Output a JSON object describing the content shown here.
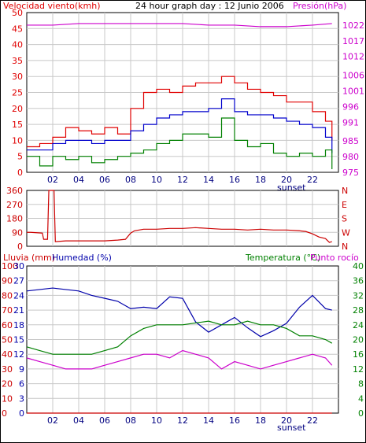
{
  "colors": {
    "wind": "#e00000",
    "wind_avg": "#0000cc",
    "wind_min": "#008000",
    "pressure": "#cc00cc",
    "direction": "#cc0000",
    "rain": "#cc0000",
    "humidity": "#0000aa",
    "temperature": "#008000",
    "dewpoint": "#cc00cc",
    "grid": "#c8c8c8",
    "frame": "#000000",
    "tick_axis": "#000080"
  },
  "chart_data": [
    {
      "id": "wind-pressure",
      "type": "line",
      "title": "24 hour graph day : 12 Junio 2006",
      "left_label": "Velocidad viento(kmh)",
      "right_label": "Presión(hPa)",
      "x_ticks": [
        "02",
        "04",
        "06",
        "08",
        "10",
        "12",
        "14",
        "16",
        "18",
        "20",
        "22"
      ],
      "x_annotation": "sunset",
      "left_ticks": [
        "0",
        "5",
        "10",
        "15",
        "20",
        "25",
        "30",
        "35",
        "40",
        "45",
        "50"
      ],
      "right_ticks": [
        "975",
        "980",
        "985",
        "991",
        "996",
        "1001",
        "1006",
        "1012",
        "1017",
        "1022"
      ],
      "ylim_left": [
        0,
        50
      ],
      "ylim_right": [
        975,
        1026
      ],
      "series": [
        {
          "key": "pressure",
          "axis": "right",
          "x": [
            0,
            2,
            4,
            6,
            8,
            10,
            12,
            14,
            16,
            18,
            20,
            22,
            23.5
          ],
          "values": [
            1022,
            1022,
            1022.5,
            1022.5,
            1022.5,
            1022.5,
            1022.5,
            1022,
            1022,
            1021.5,
            1021.5,
            1022,
            1022.5
          ]
        },
        {
          "key": "wind",
          "axis": "left",
          "x": [
            0,
            1,
            2,
            3,
            4,
            5,
            6,
            7,
            8,
            9,
            10,
            11,
            12,
            13,
            14,
            15,
            16,
            17,
            18,
            19,
            20,
            21,
            22,
            23,
            23.5
          ],
          "values": [
            8,
            9,
            11,
            14,
            13,
            12,
            14,
            12,
            20,
            25,
            26,
            25,
            27,
            28,
            28,
            30,
            28,
            26,
            25,
            24,
            22,
            22,
            19,
            16,
            10
          ]
        },
        {
          "key": "wind_avg",
          "axis": "left",
          "x": [
            0,
            1,
            2,
            3,
            4,
            5,
            6,
            7,
            8,
            9,
            10,
            11,
            12,
            13,
            14,
            15,
            16,
            17,
            18,
            19,
            20,
            21,
            22,
            23,
            23.5
          ],
          "values": [
            7,
            7,
            9,
            10,
            10,
            9,
            10,
            10,
            13,
            15,
            17,
            18,
            19,
            19,
            20,
            23,
            19,
            18,
            18,
            17,
            16,
            15,
            14,
            11,
            6
          ]
        },
        {
          "key": "wind_min",
          "axis": "left",
          "x": [
            0,
            1,
            2,
            3,
            4,
            5,
            6,
            7,
            8,
            9,
            10,
            11,
            12,
            13,
            14,
            15,
            16,
            17,
            18,
            19,
            20,
            21,
            22,
            23,
            23.5
          ],
          "values": [
            5,
            2,
            5,
            4,
            5,
            3,
            4,
            5,
            6,
            7,
            9,
            10,
            12,
            12,
            11,
            17,
            10,
            8,
            9,
            6,
            5,
            6,
            5,
            7,
            1
          ]
        }
      ]
    },
    {
      "id": "direction",
      "type": "line",
      "left_ticks": [
        "0",
        "90",
        "180",
        "270",
        "360"
      ],
      "right_labels": [
        "N",
        "W",
        "S",
        "E",
        "N"
      ],
      "ylim": [
        0,
        360
      ],
      "series": [
        {
          "key": "direction",
          "x": [
            0,
            0.3,
            1.2,
            1.3,
            1.6,
            1.7,
            2.1,
            2.2,
            3,
            4,
            5,
            6,
            7,
            7.6,
            8,
            8.3,
            9,
            10,
            11,
            12,
            13,
            14,
            15,
            16,
            17,
            18,
            19,
            20,
            21,
            21.5,
            22,
            22.5,
            23,
            23.3,
            23.5
          ],
          "values": [
            90,
            90,
            85,
            45,
            45,
            360,
            360,
            30,
            35,
            35,
            35,
            35,
            40,
            45,
            85,
            100,
            110,
            110,
            115,
            115,
            120,
            115,
            110,
            110,
            105,
            110,
            105,
            105,
            100,
            95,
            80,
            60,
            50,
            25,
            30
          ]
        }
      ]
    },
    {
      "id": "humidity-temperature",
      "type": "line",
      "left_label": "Lluvia (mm)",
      "left_label2": "Humedad (%)",
      "right_label": "Temperatura (°C)",
      "right_label2": "Punto rocío",
      "x_ticks": [
        "02",
        "04",
        "06",
        "08",
        "10",
        "12",
        "14",
        "16",
        "18",
        "20",
        "22"
      ],
      "x_annotation": "sunset",
      "rain_ticks": [
        "0",
        "10",
        "20",
        "30",
        "40",
        "50",
        "60",
        "70",
        "80",
        "90",
        "100"
      ],
      "humidity_ticks": [
        "0",
        "3",
        "6",
        "9",
        "12",
        "15",
        "18",
        "21",
        "24",
        "27",
        "30"
      ],
      "temp_ticks": [
        "0",
        "4",
        "8",
        "12",
        "16",
        "20",
        "24",
        "28",
        "32",
        "36",
        "40"
      ],
      "ylim_left": [
        0,
        100
      ],
      "ylim_right": [
        0,
        40
      ],
      "series": [
        {
          "key": "rain",
          "axis": "left",
          "x": [
            0,
            23.5
          ],
          "values": [
            0,
            0
          ]
        },
        {
          "key": "humidity",
          "axis": "left",
          "x": [
            0,
            1,
            2,
            3,
            4,
            5,
            6,
            7,
            8,
            9,
            10,
            11,
            12,
            13,
            14,
            15,
            16,
            17,
            18,
            19,
            20,
            21,
            22,
            23,
            23.5
          ],
          "values": [
            83,
            84,
            85,
            84,
            83,
            80,
            78,
            76,
            71,
            72,
            71,
            79,
            78,
            62,
            55,
            60,
            65,
            58,
            52,
            56,
            61,
            72,
            80,
            71,
            70
          ]
        },
        {
          "key": "temperature",
          "axis": "right",
          "x": [
            0,
            1,
            2,
            3,
            4,
            5,
            6,
            7,
            8,
            9,
            10,
            11,
            12,
            13,
            14,
            15,
            16,
            17,
            18,
            19,
            20,
            21,
            22,
            23,
            23.5
          ],
          "values": [
            18,
            17,
            16,
            16,
            16,
            16,
            17,
            18,
            21,
            23,
            24,
            24,
            24,
            24.5,
            25,
            24,
            24,
            25,
            24,
            24,
            23,
            21,
            21,
            20,
            19
          ]
        },
        {
          "key": "dewpoint",
          "axis": "right",
          "x": [
            0,
            1,
            2,
            3,
            4,
            5,
            6,
            7,
            8,
            9,
            10,
            11,
            12,
            13,
            14,
            15,
            16,
            17,
            18,
            19,
            20,
            21,
            22,
            23,
            23.5
          ],
          "values": [
            15,
            14,
            13,
            12,
            12,
            12,
            13,
            14,
            15,
            16,
            16,
            15,
            17,
            16,
            15,
            12,
            14,
            13,
            12,
            13,
            14,
            15,
            16,
            15,
            13
          ]
        }
      ]
    }
  ]
}
